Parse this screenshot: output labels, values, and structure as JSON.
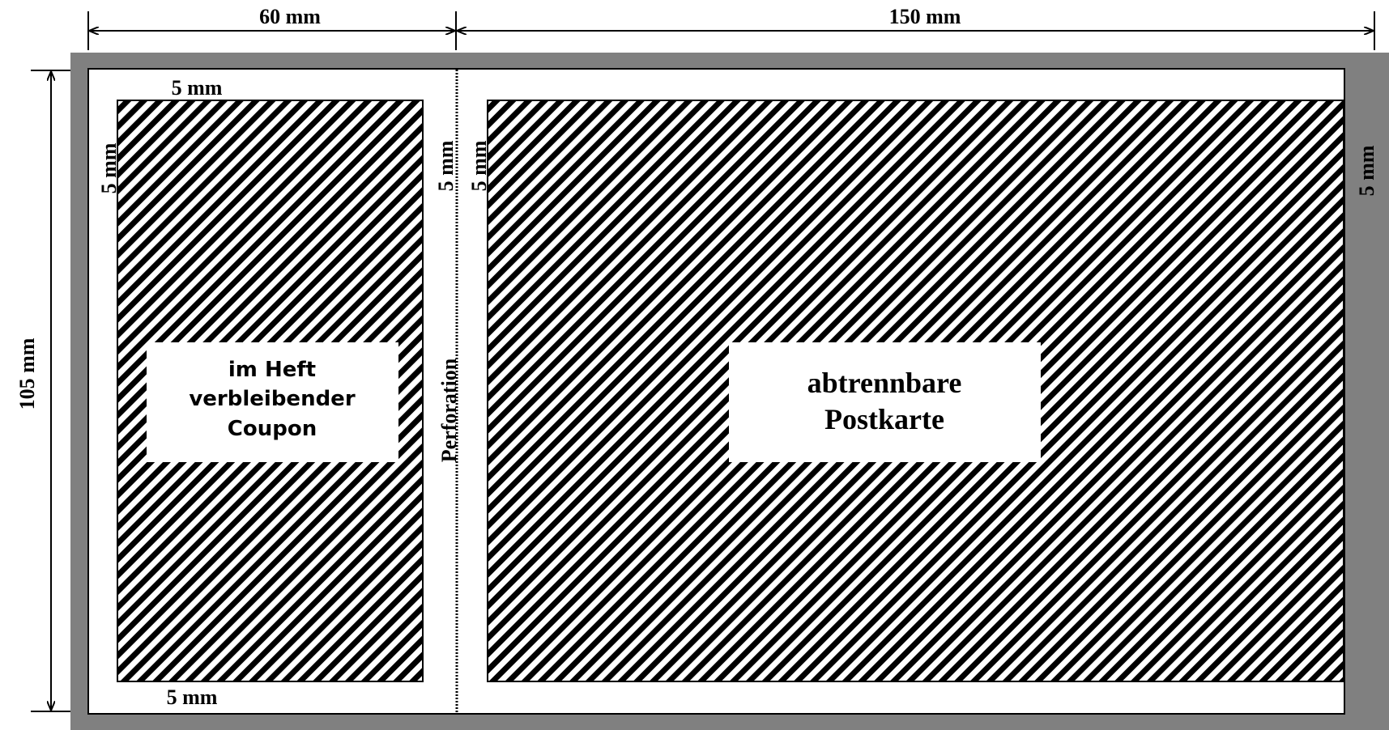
{
  "dimensions": {
    "width_left": "60 mm",
    "width_right": "150 mm",
    "height": "105 mm"
  },
  "margins": {
    "coupon_top": "5 mm",
    "coupon_left": "5 mm",
    "coupon_right": "5 mm",
    "coupon_bottom": "5 mm",
    "postcard_left": "5 mm",
    "postcard_right": "5 mm"
  },
  "perforation_label": "Perforation",
  "coupon": {
    "line1": "im Heft",
    "line2": "verbleibender",
    "line3": "Coupon"
  },
  "postcard": {
    "line1": "abtrennbare",
    "line2": "Postkarte"
  },
  "colors": {
    "frame": "#808080",
    "hatch": "#000000",
    "background": "#ffffff"
  }
}
